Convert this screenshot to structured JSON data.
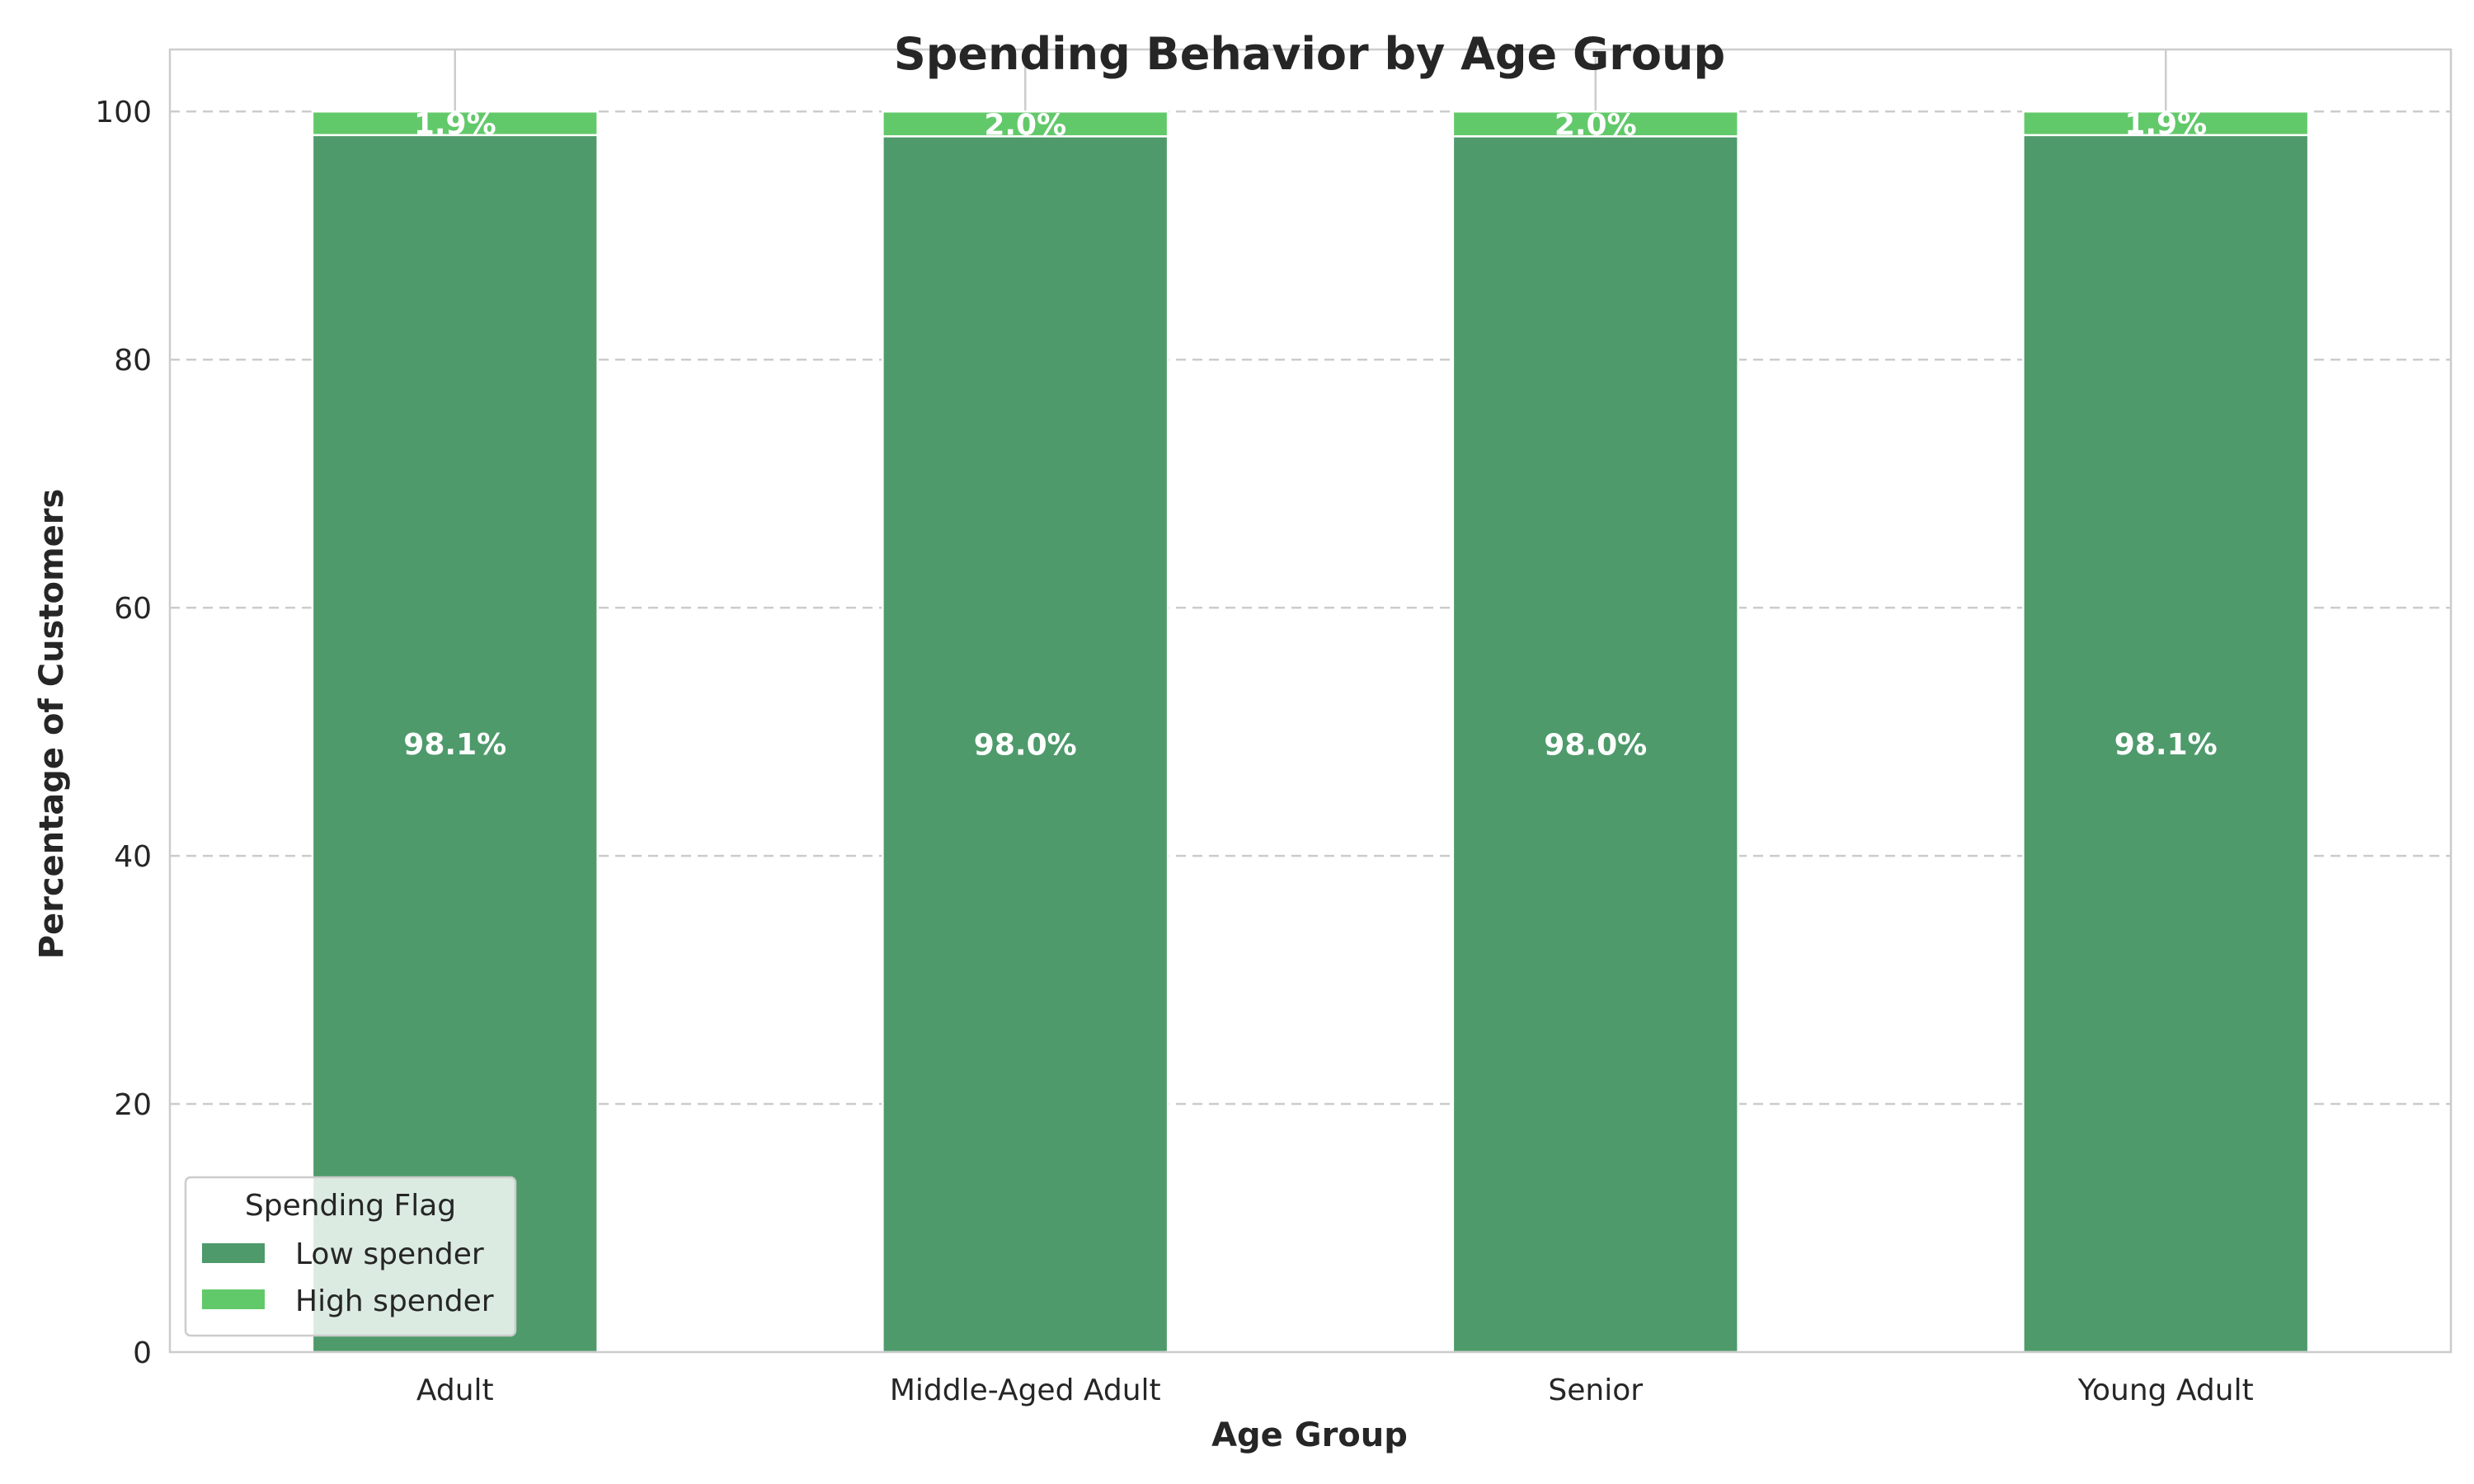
{
  "chart_data": {
    "type": "bar",
    "stacked": true,
    "title": "Spending Behavior by Age Group",
    "xlabel": "Age Group",
    "ylabel": "Percentage of Customers",
    "categories": [
      "Adult",
      "Middle-Aged Adult",
      "Senior",
      "Young Adult"
    ],
    "series": [
      {
        "name": "Low spender",
        "values": [
          98.1,
          98.0,
          98.0,
          98.1
        ],
        "labels": [
          "98.1%",
          "98.0%",
          "98.0%",
          "98.1%"
        ],
        "color": "#4e9a6b"
      },
      {
        "name": "High spender",
        "values": [
          1.9,
          2.0,
          2.0,
          1.9
        ],
        "labels": [
          "1.9%",
          "2.0%",
          "2.0%",
          "1.9%"
        ],
        "color": "#62c96a"
      }
    ],
    "ylim": [
      0,
      105
    ],
    "yticks": [
      0,
      20,
      40,
      60,
      80,
      100
    ],
    "grid": "y-dashed",
    "legend": {
      "title": "Spending Flag",
      "placement": "lower-left"
    }
  }
}
